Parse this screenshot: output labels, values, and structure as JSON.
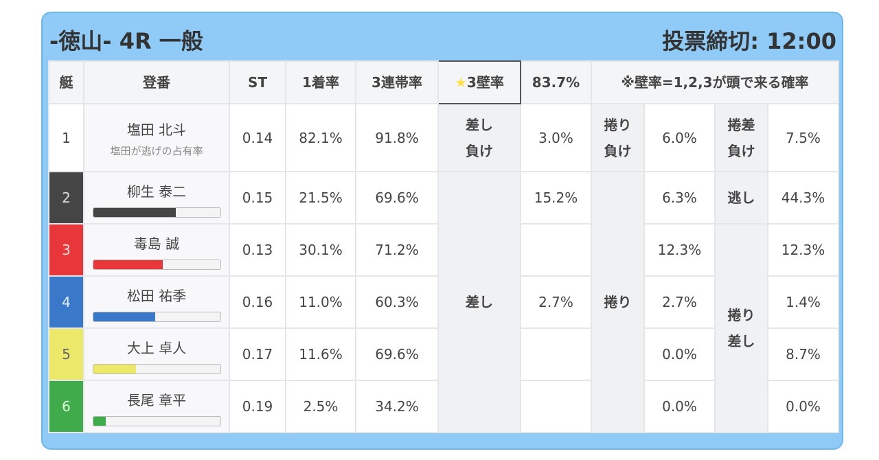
{
  "header": {
    "title": "-徳山- 4R 一般",
    "deadline": "投票締切: 12:00"
  },
  "table": {
    "columns": [
      "艇",
      "登番",
      "ST",
      "1着率",
      "3連帯率"
    ],
    "wall_rate": {
      "icon": "★",
      "label": "3壁率",
      "value": "83.7%",
      "note": "※壁率=1,2,3が頭で来る確率"
    },
    "rows": [
      {
        "boat": "1",
        "name": "塩田 北斗",
        "note": "塩田が逃げの占有率",
        "st": "0.14",
        "win": "82.1%",
        "top3": "91.8%"
      },
      {
        "boat": "2",
        "name": "柳生 泰二",
        "bar": 65,
        "st": "0.15",
        "win": "21.5%",
        "top3": "69.6%"
      },
      {
        "boat": "3",
        "name": "毒島 誠",
        "bar": 55,
        "st": "0.13",
        "win": "30.1%",
        "top3": "71.2%"
      },
      {
        "boat": "4",
        "name": "松田 祐季",
        "bar": 49,
        "st": "0.16",
        "win": "11.0%",
        "top3": "60.3%"
      },
      {
        "boat": "5",
        "name": "大上 卓人",
        "bar": 34,
        "st": "0.17",
        "win": "11.6%",
        "top3": "69.6%"
      },
      {
        "boat": "6",
        "name": "長尾 章平",
        "bar": 10,
        "st": "0.19",
        "win": "2.5%",
        "top3": "34.2%"
      }
    ],
    "kimarite": {
      "first_row": [
        {
          "label": "差し\n負け",
          "value": "3.0%"
        },
        {
          "label": "捲り\n負け",
          "value": "6.0%"
        },
        {
          "label": "捲差\n負け",
          "value": "7.5%"
        }
      ],
      "sashi": "差し",
      "sashi_values": [
        "15.2%",
        null,
        "2.7%",
        null,
        null
      ],
      "makuri": "捲り",
      "makuri_values": [
        "6.3%",
        "12.3%",
        "2.7%",
        "0.0%",
        "0.0%"
      ],
      "nige": "逃し",
      "makurizashi": "捲り\n差し",
      "right_values": [
        "44.3%",
        "12.3%",
        "1.4%",
        "8.7%",
        "0.0%"
      ]
    }
  }
}
